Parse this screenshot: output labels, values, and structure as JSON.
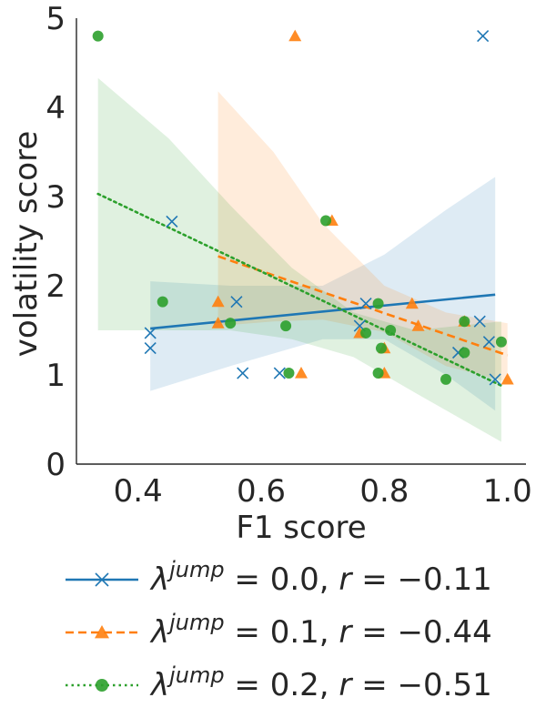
{
  "chart_data": {
    "type": "scatter",
    "xlabel": "F1 score",
    "ylabel": "volatility score",
    "xlim": [
      0.3,
      1.03
    ],
    "ylim": [
      0,
      5.0
    ],
    "xticks": [
      0.4,
      0.6,
      0.8,
      1.0
    ],
    "xtick_labels": [
      "0.4",
      "0.6",
      "0.8",
      "1.0"
    ],
    "yticks": [
      0,
      1,
      2,
      3,
      4,
      5
    ],
    "ytick_labels": [
      "0",
      "1",
      "2",
      "3",
      "4",
      "5"
    ],
    "grid": false,
    "legend_position": "below",
    "series": [
      {
        "name": "λjump = 0.0, r = -0.11",
        "legend_label": {
          "lambda": "λ",
          "sup": "jump",
          "rest": " = 0.0, ",
          "r": "r",
          "value": " = −0.11"
        },
        "color": "#1f77b4",
        "marker": "x",
        "linestyle": "solid",
        "points": [
          [
            0.42,
            1.47
          ],
          [
            0.42,
            1.3
          ],
          [
            0.455,
            2.72
          ],
          [
            0.56,
            1.82
          ],
          [
            0.57,
            1.02
          ],
          [
            0.63,
            1.02
          ],
          [
            0.76,
            1.55
          ],
          [
            0.77,
            1.8
          ],
          [
            0.92,
            1.25
          ],
          [
            0.955,
            1.6
          ],
          [
            0.96,
            4.8
          ],
          [
            0.97,
            1.37
          ],
          [
            0.98,
            0.95
          ]
        ],
        "fit": {
          "x": [
            0.42,
            0.98
          ],
          "y": [
            1.52,
            1.9
          ]
        },
        "ci": {
          "x": [
            0.42,
            0.55,
            0.7,
            0.8,
            0.9,
            0.98
          ],
          "upper": [
            2.05,
            2.0,
            2.0,
            2.35,
            2.85,
            3.22
          ],
          "lower": [
            0.82,
            1.1,
            1.4,
            1.4,
            1.0,
            0.6
          ]
        }
      },
      {
        "name": "λjump = 0.1, r = -0.44",
        "legend_label": {
          "lambda": "λ",
          "sup": "jump",
          "rest": " = 0.1, ",
          "r": "r",
          "value": " = −0.44"
        },
        "color": "#ff7f0e",
        "marker": "triangle",
        "linestyle": "dashed",
        "points": [
          [
            0.53,
            1.82
          ],
          [
            0.53,
            1.58
          ],
          [
            0.655,
            4.8
          ],
          [
            0.665,
            1.02
          ],
          [
            0.715,
            2.73
          ],
          [
            0.76,
            1.47
          ],
          [
            0.8,
            1.3
          ],
          [
            0.8,
            1.02
          ],
          [
            0.845,
            1.8
          ],
          [
            0.855,
            1.55
          ],
          [
            0.93,
            1.6
          ],
          [
            1.0,
            0.95
          ]
        ],
        "fit": {
          "x": [
            0.53,
            1.0
          ],
          "y": [
            2.33,
            1.22
          ]
        },
        "ci": {
          "x": [
            0.53,
            0.62,
            0.7,
            0.8,
            0.9,
            1.0
          ],
          "upper": [
            4.18,
            3.5,
            2.7,
            2.0,
            1.7,
            1.58
          ],
          "lower": [
            1.55,
            1.6,
            1.62,
            1.48,
            1.1,
            0.92
          ]
        }
      },
      {
        "name": "λjump = 0.2, r = -0.51",
        "legend_label": {
          "lambda": "λ",
          "sup": "jump",
          "rest": " = 0.2, ",
          "r": "r",
          "value": " = −0.51"
        },
        "color": "#2ca02c",
        "marker": "circle",
        "linestyle": "dotted",
        "points": [
          [
            0.335,
            4.8
          ],
          [
            0.44,
            1.82
          ],
          [
            0.55,
            1.58
          ],
          [
            0.64,
            1.55
          ],
          [
            0.645,
            1.02
          ],
          [
            0.705,
            2.73
          ],
          [
            0.77,
            1.47
          ],
          [
            0.79,
            1.8
          ],
          [
            0.79,
            1.02
          ],
          [
            0.795,
            1.3
          ],
          [
            0.81,
            1.5
          ],
          [
            0.9,
            0.95
          ],
          [
            0.93,
            1.6
          ],
          [
            0.93,
            1.25
          ],
          [
            0.99,
            1.37
          ]
        ],
        "fit": {
          "x": [
            0.335,
            0.99
          ],
          "y": [
            3.03,
            0.88
          ]
        },
        "ci": {
          "x": [
            0.335,
            0.45,
            0.55,
            0.65,
            0.75,
            0.85,
            0.99
          ],
          "upper": [
            4.33,
            3.65,
            2.9,
            2.2,
            1.7,
            1.5,
            1.6
          ],
          "lower": [
            1.5,
            1.5,
            1.5,
            1.4,
            1.2,
            0.8,
            0.25
          ]
        }
      }
    ]
  }
}
